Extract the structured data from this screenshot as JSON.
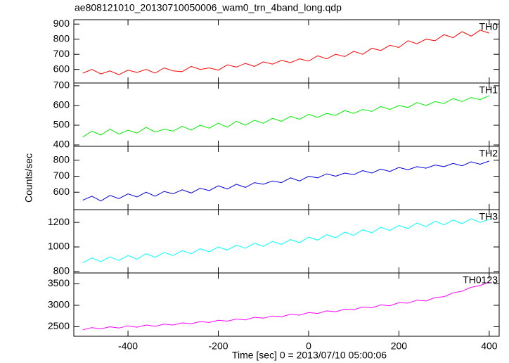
{
  "chart_data": {
    "type": "line",
    "title": "ae808121010_20130710050006_wam0_trn_4band_long.qdp",
    "xlabel": "Time [sec] 0 = 2013/07/10 05:00:06",
    "ylabel": "Counts/sec",
    "x": [
      -500,
      -480,
      -460,
      -440,
      -420,
      -400,
      -380,
      -360,
      -340,
      -320,
      -300,
      -280,
      -260,
      -240,
      -220,
      -200,
      -180,
      -160,
      -140,
      -120,
      -100,
      -80,
      -60,
      -40,
      -20,
      0,
      20,
      40,
      60,
      80,
      100,
      120,
      140,
      160,
      180,
      200,
      220,
      240,
      260,
      280,
      300,
      320,
      340,
      360,
      380,
      400
    ],
    "xlim": [
      -520,
      422
    ],
    "xticks": [
      -400,
      -200,
      0,
      200,
      400
    ],
    "series": [
      {
        "name": "TH0",
        "color": "#ff0000",
        "ylim": [
          510,
          929
        ],
        "yticks": [
          600,
          700,
          800,
          900
        ],
        "values": [
          575,
          600,
          570,
          590,
          565,
          595,
          580,
          600,
          575,
          610,
          590,
          585,
          620,
          600,
          610,
          595,
          630,
          615,
          640,
          620,
          650,
          635,
          660,
          645,
          670,
          655,
          690,
          670,
          700,
          685,
          720,
          700,
          740,
          725,
          760,
          745,
          790,
          770,
          800,
          790,
          830,
          810,
          850,
          820,
          860,
          840
        ]
      },
      {
        "name": "TH1",
        "color": "#00ee00",
        "ylim": [
          393,
          714
        ],
        "yticks": [
          400,
          500,
          600,
          700
        ],
        "values": [
          440,
          470,
          450,
          480,
          455,
          475,
          460,
          490,
          465,
          480,
          470,
          495,
          475,
          500,
          485,
          510,
          490,
          520,
          500,
          525,
          510,
          535,
          520,
          545,
          530,
          555,
          540,
          560,
          550,
          575,
          560,
          580,
          570,
          595,
          580,
          600,
          590,
          615,
          600,
          620,
          610,
          635,
          620,
          640,
          630,
          650
        ]
      },
      {
        "name": "TH2",
        "color": "#0000dd",
        "ylim": [
          491,
          887
        ],
        "yticks": [
          600,
          700,
          800
        ],
        "values": [
          550,
          575,
          545,
          580,
          560,
          590,
          570,
          600,
          575,
          605,
          590,
          615,
          595,
          625,
          610,
          640,
          620,
          650,
          630,
          660,
          650,
          670,
          660,
          690,
          670,
          700,
          690,
          715,
          700,
          720,
          710,
          735,
          720,
          745,
          730,
          755,
          740,
          760,
          750,
          770,
          760,
          780,
          765,
          790,
          775,
          795
        ]
      },
      {
        "name": "TH3",
        "color": "#00ffff",
        "ylim": [
          788,
          1304
        ],
        "yticks": [
          800,
          1000,
          1200
        ],
        "values": [
          870,
          910,
          880,
          920,
          890,
          930,
          900,
          945,
          915,
          955,
          930,
          970,
          945,
          985,
          960,
          1000,
          975,
          1015,
          990,
          1030,
          1005,
          1045,
          1020,
          1060,
          1035,
          1080,
          1055,
          1100,
          1075,
          1120,
          1095,
          1140,
          1115,
          1160,
          1135,
          1175,
          1150,
          1195,
          1165,
          1210,
          1180,
          1220,
          1190,
          1230,
          1200,
          1225
        ]
      },
      {
        "name": "TH0123",
        "color": "#ff00ff",
        "ylim": [
          2278,
          3754
        ],
        "yticks": [
          2500,
          3000,
          3500
        ],
        "values": [
          2430,
          2480,
          2450,
          2500,
          2470,
          2520,
          2490,
          2540,
          2510,
          2560,
          2540,
          2590,
          2570,
          2620,
          2600,
          2650,
          2630,
          2680,
          2660,
          2720,
          2700,
          2750,
          2730,
          2790,
          2770,
          2830,
          2810,
          2870,
          2850,
          2910,
          2900,
          2960,
          2940,
          3010,
          2990,
          3060,
          3050,
          3120,
          3100,
          3180,
          3200,
          3290,
          3330,
          3420,
          3460,
          3540
        ]
      }
    ]
  }
}
